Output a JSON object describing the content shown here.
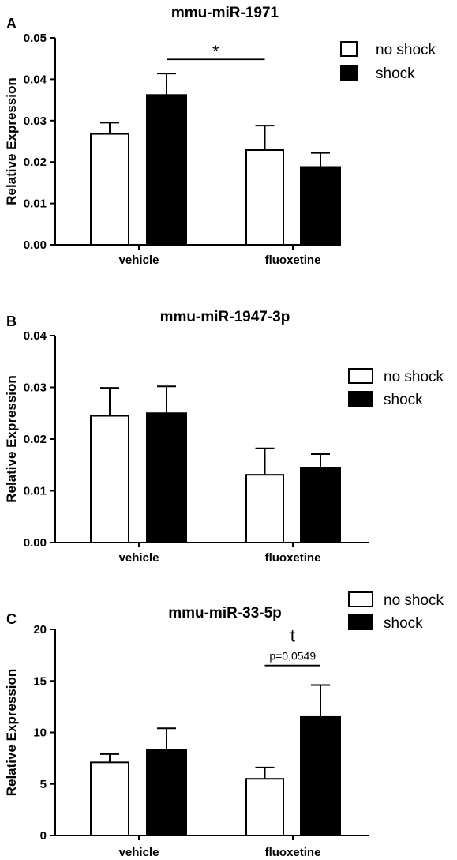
{
  "chart_data": [
    {
      "type": "bar",
      "panel": "A",
      "title": "mmu-miR-1971",
      "ylabel": "Relative Expression",
      "categories": [
        "vehicle",
        "fluoxetine"
      ],
      "ylim": [
        0,
        0.05
      ],
      "yticks": [
        "0.00",
        "0.01",
        "0.02",
        "0.03",
        "0.04",
        "0.05"
      ],
      "yticks_values": [
        0,
        0.01,
        0.02,
        0.03,
        0.04,
        0.05
      ],
      "series": [
        {
          "name": "no shock",
          "color": "#ffffff",
          "values": [
            0.0268,
            0.0229
          ],
          "errors": [
            0.0027,
            0.0059
          ]
        },
        {
          "name": "shock",
          "color": "#000000",
          "values": [
            0.0362,
            0.0188
          ],
          "errors": [
            0.0052,
            0.0034
          ]
        }
      ],
      "legend_position": "top-right",
      "annotations": [
        {
          "text": "*",
          "from": [
            0,
            1
          ],
          "to": [
            1,
            0
          ],
          "y": 0.0448
        }
      ]
    },
    {
      "type": "bar",
      "panel": "B",
      "title": "mmu-miR-1947-3p",
      "ylabel": "Relative Expression",
      "categories": [
        "vehicle",
        "fluoxetine"
      ],
      "ylim": [
        0,
        0.04
      ],
      "yticks": [
        "0.00",
        "0.01",
        "0.02",
        "0.03",
        "0.04"
      ],
      "yticks_values": [
        0,
        0.01,
        0.02,
        0.03,
        0.04
      ],
      "series": [
        {
          "name": "no shock",
          "color": "#ffffff",
          "values": [
            0.0245,
            0.0131
          ],
          "errors": [
            0.0054,
            0.0051
          ]
        },
        {
          "name": "shock",
          "color": "#000000",
          "values": [
            0.025,
            0.0145
          ],
          "errors": [
            0.0052,
            0.0026
          ]
        }
      ],
      "legend_position": "right",
      "annotations": []
    },
    {
      "type": "bar",
      "panel": "C",
      "title": "mmu-miR-33-5p",
      "ylabel": "Relative Expression",
      "categories": [
        "vehicle",
        "fluoxetine"
      ],
      "ylim": [
        0,
        20
      ],
      "yticks": [
        "0",
        "5",
        "10",
        "15",
        "20"
      ],
      "yticks_values": [
        0,
        5,
        10,
        15,
        20
      ],
      "series": [
        {
          "name": "no shock",
          "color": "#ffffff",
          "values": [
            7.1,
            5.5
          ],
          "errors": [
            0.8,
            1.1
          ]
        },
        {
          "name": "shock",
          "color": "#000000",
          "values": [
            8.3,
            11.5
          ],
          "errors": [
            2.1,
            3.1
          ]
        }
      ],
      "legend_position": "top-right",
      "annotations": [
        {
          "text": "t",
          "subtext": "p=0,0549",
          "from": [
            1,
            0
          ],
          "to": [
            1,
            1
          ],
          "y": 16.5
        }
      ]
    }
  ]
}
